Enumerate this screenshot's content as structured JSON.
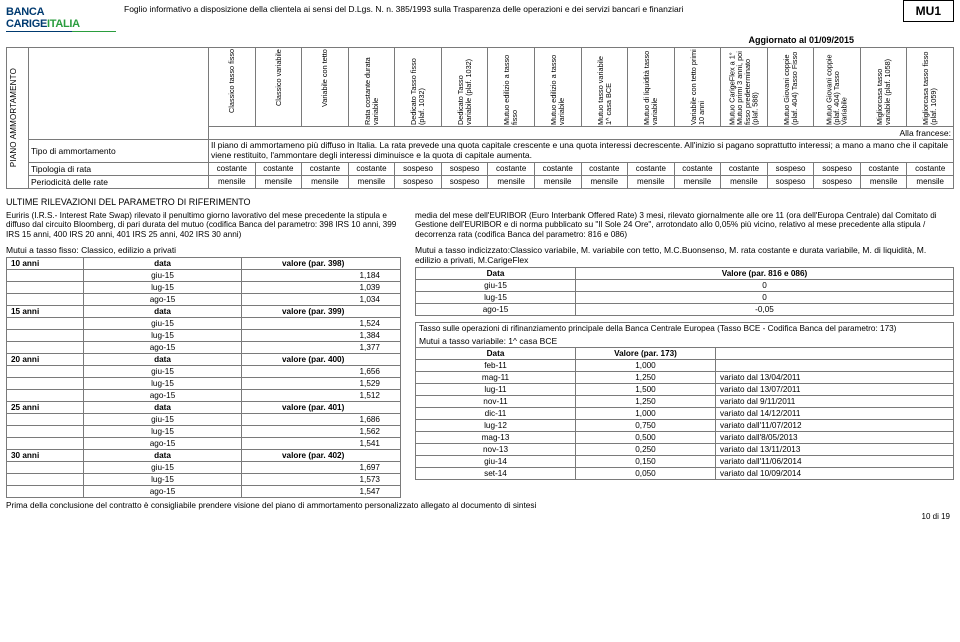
{
  "logo": {
    "top": "BANCA",
    "mid": "CARIGE",
    "suffix": "ITALIA"
  },
  "lawLine": "Foglio informativo a disposizione della clientela ai sensi del D.Lgs. N. n. 385/1993 sulla Trasparenza delle operazioni e dei servizi bancari e finanziari",
  "code": "MU1",
  "updated": "Aggiornato al 01/09/2015",
  "sideLabel": "PIANO AMMORTAMENTO",
  "colHeaders": [
    "Classico tasso fisso",
    "Classico variabile",
    "Variabile con tetto",
    "Rata costante durata variabile",
    "Dedicato Tasso fisso (plaf. 1032)",
    "Dedicato Tasso variabile (plaf. 1032)",
    "Mutuo edilizio a tasso fisso",
    "Mutuo edilizio a tasso variabile",
    "Mutuo tasso variabile 1^ casa BCE",
    "Mutuo di liquidità tasso variabile",
    "Variabile con tetto primi 10 anni",
    "Mutuo CarigeFlex a 1° Mutuo primi 3 anni, poi fisso predeterminato (plaf. 588)",
    "Mutuo Giovani coppie (plaf. 404) Tasso Fisso",
    "Mutuo Giovani coppie (plaf. 404) Tasso Variabile",
    "Migliorcasa tasso variabile (plaf. 1058)",
    "Migliorcasa tasso fisso (plaf. 1059)"
  ],
  "rows": {
    "franceseLabel": "Alla francese:",
    "tipoLabel": "Tipo di ammortamento",
    "tipoDesc": "Il piano di ammortameno più diffuso in Italia. La rata prevede una quota capitale crescente e una quota interessi decrescente. All'inizio si pagano soprattutto interessi; a mano a mano che il capitale viene restituito, l'ammontare degli interessi diminuisce e la quota di capitale aumenta.",
    "tipologiaLabel": "Tipologia di rata",
    "tipologia": [
      "costante",
      "costante",
      "costante",
      "costante",
      "sospeso",
      "sospeso",
      "costante",
      "costante",
      "costante",
      "costante",
      "costante",
      "costante",
      "sospeso",
      "sospeso",
      "costante",
      "costante"
    ],
    "periodLabel": "Periodicità delle rate",
    "period": [
      "mensile",
      "mensile",
      "mensile",
      "mensile",
      "sospeso",
      "sospeso",
      "mensile",
      "mensile",
      "mensile",
      "mensile",
      "mensile",
      "mensile",
      "sospeso",
      "sospeso",
      "mensile",
      "mensile"
    ]
  },
  "sectionTitle": "ULTIME RILEVAZIONI DEL PARAMETRO DI RIFERIMENTO",
  "left": {
    "para": "Euriris (I.R.S.- Interest Rate Swap) rilevato il penultimo giorno lavorativo del mese precedente la stipula e diffuso dal circuito Bloomberg, di pari durata del mutuo (codifica Banca del parametro: 398 IRS 10 anni, 399 IRS 15 anni, 400 IRS 20 anni, 401 IRS 25 anni, 402 IRS 30 anni)",
    "sub": "Mutui a tasso fisso: Classico, edilizio a privati",
    "blocks": [
      {
        "label": "10 anni",
        "header": "valore (par. 398)",
        "rows": [
          [
            "giu-15",
            "1,184"
          ],
          [
            "lug-15",
            "1,039"
          ],
          [
            "ago-15",
            "1,034"
          ]
        ]
      },
      {
        "label": "15 anni",
        "header": "valore (par. 399)",
        "rows": [
          [
            "giu-15",
            "1,524"
          ],
          [
            "lug-15",
            "1,384"
          ],
          [
            "ago-15",
            "1,377"
          ]
        ]
      },
      {
        "label": "20 anni",
        "header": "valore (par. 400)",
        "rows": [
          [
            "giu-15",
            "1,656"
          ],
          [
            "lug-15",
            "1,529"
          ],
          [
            "ago-15",
            "1,512"
          ]
        ]
      },
      {
        "label": "25 anni",
        "header": "valore (par. 401)",
        "rows": [
          [
            "giu-15",
            "1,686"
          ],
          [
            "lug-15",
            "1,562"
          ],
          [
            "ago-15",
            "1,541"
          ]
        ]
      },
      {
        "label": "30 anni",
        "header": "valore (par. 402)",
        "rows": [
          [
            "giu-15",
            "1,697"
          ],
          [
            "lug-15",
            "1,573"
          ],
          [
            "ago-15",
            "1,547"
          ]
        ]
      }
    ]
  },
  "right": {
    "para": "media del mese dell'EURIBOR (Euro Interbank Offered Rate) 3 mesi, rilevato giornalmente alle ore 11 (ora dell'Europa Centrale) dal Comitato di Gestione dell'EURIBOR e di norma pubblicato su \"Il Sole 24 Ore\", arrotondato allo 0,05% più vicino, relativo al mese precedente alla stipula / decorrenza rata (codifica Banca del parametro: 816 e 086)",
    "sub": "Mutui a tasso indicizzato:Classico variabile, M. variabile con tetto, M.C.Buonsenso, M. rata costante e durata variabile, M. di liquidità, M. edilizio a privati, M.CarigeFlex",
    "tableA": {
      "head": [
        "Data",
        "Valore (par. 816 e 086)"
      ],
      "rows": [
        [
          "giu-15",
          "0"
        ],
        [
          "lug-15",
          "0"
        ],
        [
          "ago-15",
          "-0,05"
        ]
      ]
    },
    "mid": "Tasso sulle operazioni di rifinanziamento principale della Banca Centrale Europea (Tasso BCE - Codifica Banca del parametro: 173)",
    "sub2": "Mutui a tasso variabile: 1^ casa BCE",
    "tableB": {
      "head": [
        "Data",
        "Valore (par. 173)",
        ""
      ],
      "rows": [
        [
          "feb-11",
          "1,000",
          ""
        ],
        [
          "mag-11",
          "1,250",
          "variato dal 13/04/2011"
        ],
        [
          "lug-11",
          "1,500",
          "variato dal 13/07/2011"
        ],
        [
          "nov-11",
          "1,250",
          "variato dal 9/11/2011"
        ],
        [
          "dic-11",
          "1,000",
          "variato dal 14/12/2011"
        ],
        [
          "lug-12",
          "0,750",
          "variato dall'11/07/2012"
        ],
        [
          "mag-13",
          "0,500",
          "variato dall'8/05/2013"
        ],
        [
          "nov-13",
          "0,250",
          "variato dal 13/11/2013"
        ],
        [
          "giu-14",
          "0,150",
          "variato dall'11/06/2014"
        ],
        [
          "set-14",
          "0,050",
          "variato dal 10/09/2014"
        ]
      ]
    }
  },
  "footer": "Prima della conclusione del contratto è consigliabile prendere visione del piano di ammortamento personalizzato allegato al documento di sintesi",
  "pageNum": "10 di 19"
}
